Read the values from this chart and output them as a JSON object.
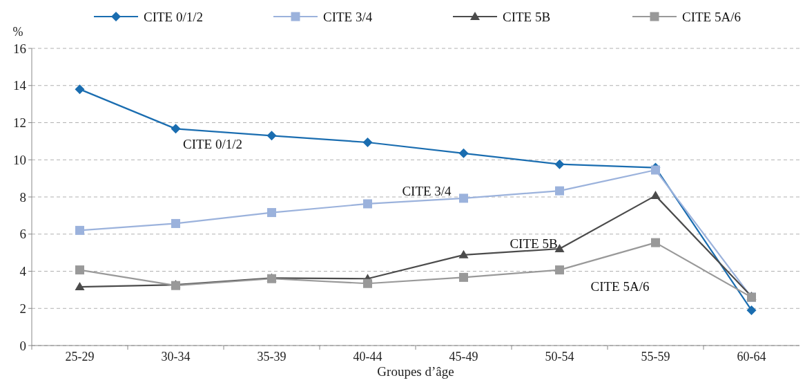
{
  "chart_data": {
    "type": "line",
    "xlabel": "Groupes d’âge",
    "ylabel": "%",
    "categories": [
      "25-29",
      "30-34",
      "35-39",
      "40-44",
      "45-49",
      "50-54",
      "55-59",
      "60-64"
    ],
    "series": [
      {
        "name": "CITE 0/1/2",
        "color": "#1a6db0",
        "marker": "diamond",
        "values": [
          13.8,
          11.67,
          11.3,
          10.94,
          10.35,
          9.76,
          9.58,
          1.9
        ]
      },
      {
        "name": "CITE 3/4",
        "color": "#9bb2dc",
        "marker": "square",
        "values": [
          6.2,
          6.57,
          7.16,
          7.63,
          7.93,
          8.33,
          9.45,
          2.6
        ]
      },
      {
        "name": "CITE 5B",
        "color": "#4b4b4b",
        "marker": "triangle",
        "values": [
          3.16,
          3.27,
          3.63,
          3.6,
          4.88,
          5.21,
          8.07,
          2.64
        ]
      },
      {
        "name": "CITE 5A/6",
        "color": "#999999",
        "marker": "square",
        "values": [
          4.07,
          3.23,
          3.6,
          3.34,
          3.67,
          4.07,
          5.54,
          2.6
        ]
      }
    ],
    "annotations": [
      "CITE 0/1/2",
      "CITE 3/4",
      "CITE 5B",
      "CITE 5A/6"
    ],
    "ylim": [
      0,
      16
    ],
    "yticks": [
      0,
      2,
      4,
      6,
      8,
      10,
      12,
      14,
      16
    ],
    "grid": "y",
    "legend": "top"
  }
}
